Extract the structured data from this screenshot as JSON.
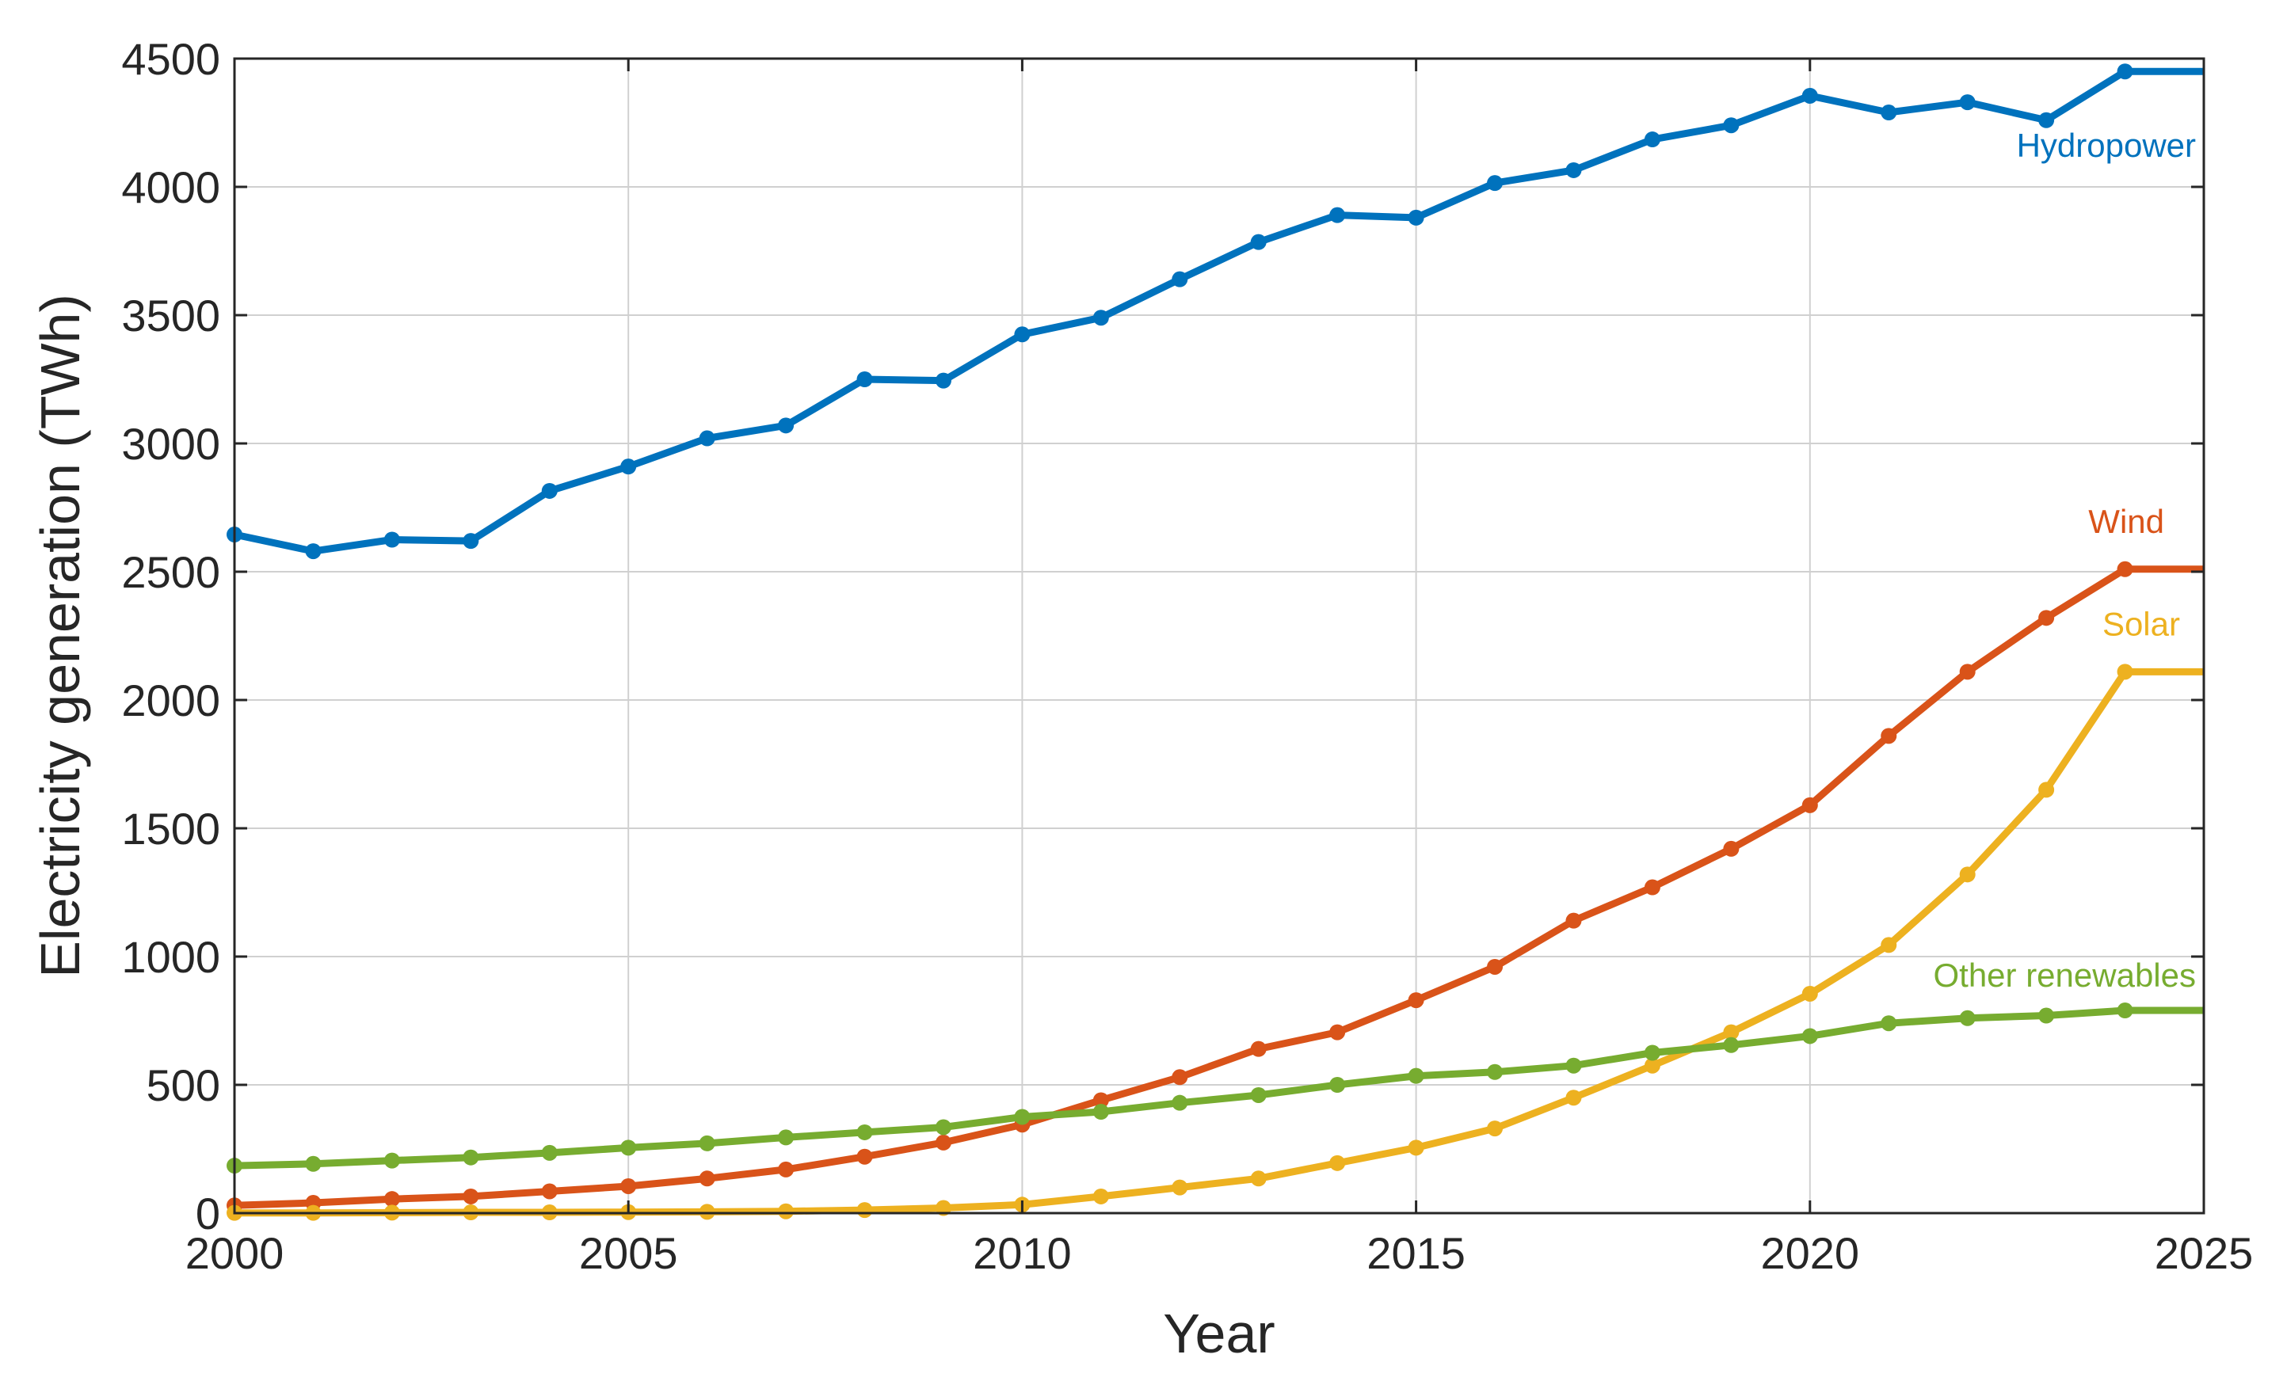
{
  "chart_data": {
    "type": "line",
    "title": "",
    "xlabel": "Year",
    "ylabel": "Electricity generation (TWh)",
    "xlim": [
      2000,
      2025
    ],
    "ylim": [
      0,
      4500
    ],
    "xticks": [
      2000,
      2005,
      2010,
      2015,
      2020,
      2025
    ],
    "yticks": [
      0,
      500,
      1000,
      1500,
      2000,
      2500,
      3000,
      3500,
      4000,
      4500
    ],
    "grid": true,
    "legend": "inline labels at right end of each line",
    "x": [
      2000,
      2001,
      2002,
      2003,
      2004,
      2005,
      2006,
      2007,
      2008,
      2009,
      2010,
      2011,
      2012,
      2013,
      2014,
      2015,
      2016,
      2017,
      2018,
      2019,
      2020,
      2021,
      2022,
      2023,
      2024
    ],
    "x_end": 2025,
    "series": [
      {
        "name": "Hydropower",
        "color": "#0072BD",
        "values": [
          2645,
          2580,
          2625,
          2620,
          2815,
          2910,
          3020,
          3070,
          3250,
          3245,
          3425,
          3490,
          3640,
          3785,
          3890,
          3880,
          4015,
          4065,
          4185,
          4240,
          4355,
          4290,
          4330,
          4260,
          4450
        ]
      },
      {
        "name": "Wind",
        "color": "#D95319",
        "values": [
          30,
          40,
          55,
          65,
          85,
          105,
          135,
          170,
          220,
          275,
          345,
          440,
          530,
          640,
          705,
          830,
          960,
          1140,
          1270,
          1420,
          1590,
          1860,
          2110,
          2320,
          2510
        ]
      },
      {
        "name": "Solar",
        "color": "#EDB120",
        "values": [
          1,
          1,
          2,
          3,
          3,
          4,
          5,
          7,
          12,
          20,
          33,
          65,
          100,
          135,
          195,
          255,
          330,
          450,
          575,
          705,
          855,
          1045,
          1320,
          1650,
          2110
        ]
      },
      {
        "name": "Other renewables",
        "color": "#77AC30",
        "values": [
          185,
          192,
          205,
          217,
          235,
          255,
          272,
          295,
          315,
          335,
          375,
          395,
          430,
          460,
          500,
          535,
          550,
          575,
          625,
          655,
          690,
          740,
          760,
          770,
          790
        ]
      }
    ]
  }
}
